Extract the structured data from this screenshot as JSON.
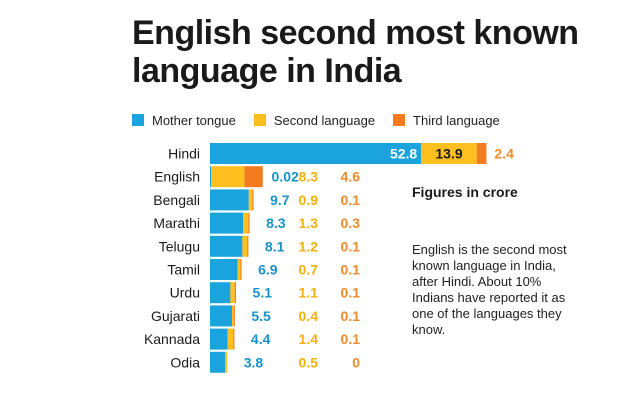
{
  "title": "English second most known language in India",
  "subtitle": "Figures in crore",
  "note": "English is the second most known language in India, after Hindi. About 10% Indians have reported it as one of the languages they know.",
  "colors": {
    "mother": "#1aa3dc",
    "second": "#ffbf1f",
    "third": "#f47c20",
    "label_mother": "#1893c7",
    "label_second": "#f0b10a",
    "label_third": "#f08a2a"
  },
  "chart_data": {
    "type": "bar",
    "orientation": "horizontal",
    "stacked": true,
    "unit": "crore",
    "categories": [
      "Hindi",
      "English",
      "Bengali",
      "Marathi",
      "Telugu",
      "Tamil",
      "Urdu",
      "Gujarati",
      "Kannada",
      "Odia"
    ],
    "series": [
      {
        "name": "Mother tongue",
        "values": [
          52.8,
          0.02,
          9.7,
          8.3,
          8.1,
          6.9,
          5.1,
          5.5,
          4.4,
          3.8
        ]
      },
      {
        "name": "Second language",
        "values": [
          13.9,
          8.3,
          0.9,
          1.3,
          1.2,
          0.7,
          1.1,
          0.4,
          1.4,
          0.5
        ]
      },
      {
        "name": "Third language",
        "values": [
          2.4,
          4.6,
          0.1,
          0.3,
          0.1,
          0.1,
          0.1,
          0.1,
          0.1,
          0
        ]
      }
    ],
    "value_labels": [
      [
        "52.8",
        "13.9",
        "2.4"
      ],
      [
        "0.02",
        "8.3",
        "4.6"
      ],
      [
        "9.7",
        "0.9",
        "0.1"
      ],
      [
        "8.3",
        "1.3",
        "0.3"
      ],
      [
        "8.1",
        "1.2",
        "0.1"
      ],
      [
        "6.9",
        "0.7",
        "0.1"
      ],
      [
        "5.1",
        "1.1",
        "0.1"
      ],
      [
        "5.5",
        "0.4",
        "0.1"
      ],
      [
        "4.4",
        "1.4",
        "0.1"
      ],
      [
        "3.8",
        "0.5",
        "0"
      ]
    ],
    "legend_position": "top-left",
    "grid": false
  }
}
